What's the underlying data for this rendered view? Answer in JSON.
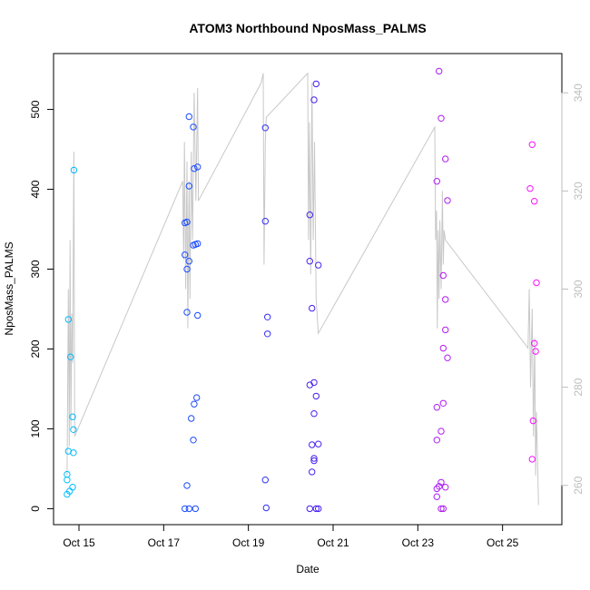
{
  "chart_data": {
    "type": "scatter",
    "title": "ATOM3 Northbound NposMass_PALMS",
    "xlabel": "Date",
    "ylabel": "NposMass_PALMS",
    "x_unit": "day of October",
    "xlim": [
      14.4,
      26.4
    ],
    "ylim": [
      -20,
      570
    ],
    "y2lim": [
      252,
      348
    ],
    "x_ticks": [
      15,
      17,
      19,
      21,
      23,
      25
    ],
    "x_tick_labels": [
      "Oct 15",
      "Oct 17",
      "Oct 19",
      "Oct 21",
      "Oct 23",
      "Oct 25"
    ],
    "y_ticks": [
      0,
      100,
      200,
      300,
      400,
      500
    ],
    "y_tick_labels": [
      "0",
      "100",
      "200",
      "300",
      "400",
      "500"
    ],
    "y2_ticks": [
      260,
      280,
      300,
      320,
      340
    ],
    "y2_tick_labels": [
      "260",
      "280",
      "300",
      "320",
      "340"
    ],
    "grid": false,
    "colors": {
      "line": "#c8c8c8",
      "frame": "#000000",
      "right_axis": "#bdbdbd",
      "gradient": [
        "#00bfff",
        "#1a4fff",
        "#4020f0",
        "#a020f0",
        "#ff10ff"
      ]
    },
    "points": [
      [
        14.75,
        237
      ],
      [
        14.8,
        190
      ],
      [
        14.85,
        115
      ],
      [
        14.87,
        99
      ],
      [
        14.87,
        70
      ],
      [
        14.75,
        72
      ],
      [
        14.72,
        43
      ],
      [
        14.72,
        36
      ],
      [
        14.85,
        27
      ],
      [
        14.78,
        22
      ],
      [
        14.72,
        18
      ],
      [
        14.88,
        424
      ],
      [
        17.6,
        491
      ],
      [
        17.7,
        478
      ],
      [
        17.8,
        428
      ],
      [
        17.72,
        426
      ],
      [
        17.6,
        404
      ],
      [
        17.5,
        358
      ],
      [
        17.55,
        359
      ],
      [
        17.5,
        318
      ],
      [
        17.6,
        310
      ],
      [
        17.55,
        300
      ],
      [
        17.8,
        332
      ],
      [
        17.75,
        331
      ],
      [
        17.7,
        330
      ],
      [
        17.55,
        246
      ],
      [
        17.8,
        242
      ],
      [
        17.78,
        139
      ],
      [
        17.72,
        131
      ],
      [
        17.65,
        113
      ],
      [
        17.7,
        86
      ],
      [
        17.55,
        29
      ],
      [
        17.5,
        0
      ],
      [
        17.6,
        0
      ],
      [
        17.75,
        0
      ],
      [
        19.4,
        477
      ],
      [
        19.4,
        360
      ],
      [
        19.45,
        240
      ],
      [
        19.45,
        219
      ],
      [
        19.4,
        36
      ],
      [
        19.42,
        1
      ],
      [
        20.6,
        532
      ],
      [
        20.55,
        512
      ],
      [
        20.45,
        368
      ],
      [
        20.45,
        310
      ],
      [
        20.65,
        305
      ],
      [
        20.5,
        251
      ],
      [
        20.55,
        158
      ],
      [
        20.45,
        155
      ],
      [
        20.6,
        141
      ],
      [
        20.55,
        119
      ],
      [
        20.65,
        81
      ],
      [
        20.5,
        80
      ],
      [
        20.55,
        63
      ],
      [
        20.55,
        60
      ],
      [
        20.5,
        46
      ],
      [
        20.45,
        0
      ],
      [
        20.6,
        0
      ],
      [
        20.65,
        0
      ],
      [
        23.5,
        548
      ],
      [
        23.55,
        489
      ],
      [
        23.65,
        438
      ],
      [
        23.7,
        386
      ],
      [
        23.45,
        410
      ],
      [
        23.6,
        292
      ],
      [
        23.65,
        262
      ],
      [
        23.65,
        224
      ],
      [
        23.6,
        201
      ],
      [
        23.7,
        189
      ],
      [
        23.6,
        132
      ],
      [
        23.45,
        127
      ],
      [
        23.55,
        97
      ],
      [
        23.45,
        86
      ],
      [
        23.55,
        33
      ],
      [
        23.5,
        28
      ],
      [
        23.65,
        27
      ],
      [
        23.45,
        25
      ],
      [
        23.45,
        15
      ],
      [
        23.55,
        0
      ],
      [
        23.6,
        0
      ],
      [
        25.7,
        456
      ],
      [
        25.65,
        401
      ],
      [
        25.75,
        385
      ],
      [
        25.8,
        283
      ],
      [
        25.75,
        207
      ],
      [
        25.78,
        197
      ],
      [
        25.72,
        110
      ],
      [
        25.7,
        62
      ]
    ],
    "line": [
      [
        14.72,
        262
      ],
      [
        14.75,
        300
      ],
      [
        14.77,
        268
      ],
      [
        14.79,
        310
      ],
      [
        14.81,
        272
      ],
      [
        14.83,
        295
      ],
      [
        14.85,
        285
      ],
      [
        14.88,
        328
      ],
      [
        14.9,
        270
      ],
      [
        17.45,
        322
      ],
      [
        17.47,
        306
      ],
      [
        17.49,
        330
      ],
      [
        17.52,
        300
      ],
      [
        17.55,
        326
      ],
      [
        17.57,
        292
      ],
      [
        17.6,
        322
      ],
      [
        17.62,
        298
      ],
      [
        17.65,
        328
      ],
      [
        17.68,
        310
      ],
      [
        17.72,
        340
      ],
      [
        17.76,
        318
      ],
      [
        17.8,
        341
      ],
      [
        17.82,
        318
      ],
      [
        19.3,
        342
      ],
      [
        19.35,
        344
      ],
      [
        19.37,
        305
      ],
      [
        19.4,
        330
      ],
      [
        19.42,
        335
      ],
      [
        20.4,
        344
      ],
      [
        20.42,
        310
      ],
      [
        20.44,
        334
      ],
      [
        20.47,
        303
      ],
      [
        20.5,
        342
      ],
      [
        20.53,
        310
      ],
      [
        20.56,
        330
      ],
      [
        20.6,
        298
      ],
      [
        20.65,
        291
      ],
      [
        23.4,
        333
      ],
      [
        23.42,
        310
      ],
      [
        23.44,
        316
      ],
      [
        23.46,
        292
      ],
      [
        23.48,
        312
      ],
      [
        23.5,
        298
      ],
      [
        23.52,
        314
      ],
      [
        23.55,
        300
      ],
      [
        23.58,
        320
      ],
      [
        23.6,
        305
      ],
      [
        23.62,
        312
      ],
      [
        23.65,
        310
      ],
      [
        25.6,
        288
      ],
      [
        25.63,
        300
      ],
      [
        25.66,
        280
      ],
      [
        25.7,
        296
      ],
      [
        25.73,
        270
      ],
      [
        25.76,
        290
      ],
      [
        25.78,
        262
      ],
      [
        25.8,
        275
      ],
      [
        25.85,
        256
      ]
    ]
  }
}
